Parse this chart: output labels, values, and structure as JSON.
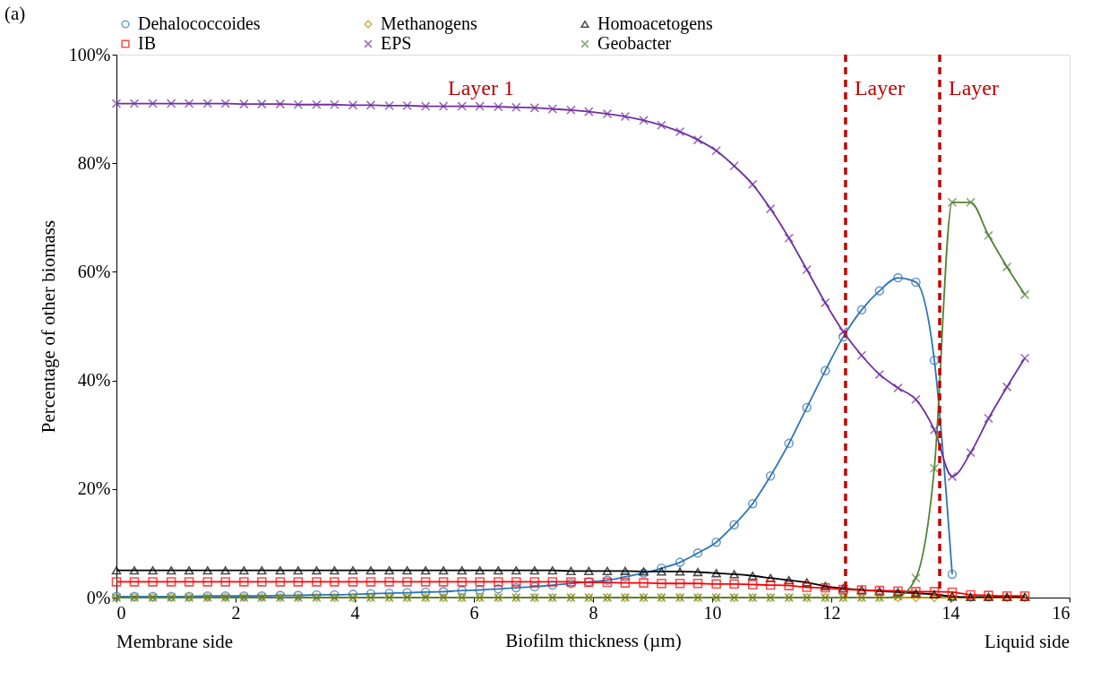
{
  "chart_data": {
    "type": "line",
    "xlabel": "Biofilm thickness (µm)",
    "ylabel": "Percentage of other biomass",
    "x": [
      0,
      0.3,
      0.61,
      0.92,
      1.22,
      1.53,
      1.83,
      2.14,
      2.44,
      2.75,
      3.05,
      3.36,
      3.66,
      3.97,
      4.27,
      4.58,
      4.88,
      5.19,
      5.49,
      5.8,
      6.1,
      6.41,
      6.71,
      7.02,
      7.32,
      7.63,
      7.93,
      8.24,
      8.54,
      8.85,
      9.15,
      9.46,
      9.76,
      10.07,
      10.37,
      10.68,
      10.98,
      11.29,
      11.59,
      11.9,
      12.2,
      12.51,
      12.81,
      13.12,
      13.42,
      13.73,
      14.03,
      14.34,
      14.64,
      14.95,
      15.25
    ],
    "series": [
      {
        "name": "Dehalococcoides",
        "color": "#2e75b6",
        "marker": "circle",
        "values": [
          0.2,
          0.2,
          0.2,
          0.2,
          0.2,
          0.3,
          0.3,
          0.3,
          0.3,
          0.4,
          0.4,
          0.5,
          0.5,
          0.6,
          0.7,
          0.8,
          0.9,
          1.0,
          1.1,
          1.3,
          1.4,
          1.6,
          1.8,
          2.0,
          2.3,
          2.6,
          2.9,
          3.2,
          3.8,
          4.5,
          5.4,
          6.5,
          8.2,
          10.2,
          13.4,
          17.3,
          22.4,
          28.4,
          35.0,
          41.8,
          48.0,
          53.0,
          56.5,
          58.9,
          58.1,
          43.7,
          4.3,
          null,
          null,
          null,
          null
        ]
      },
      {
        "name": "Methanogens",
        "color": "#bf9000",
        "marker": "diamond",
        "values": [
          0,
          0,
          0,
          0,
          0,
          0,
          0,
          0,
          0,
          0,
          0,
          0,
          0,
          0,
          0,
          0,
          0,
          0,
          0,
          0,
          0,
          0,
          0,
          0,
          0,
          0,
          0,
          0,
          0,
          0,
          0,
          0,
          0,
          0,
          0,
          0,
          0,
          0,
          0,
          0,
          0,
          0,
          0,
          0,
          0,
          0,
          0,
          0,
          0,
          0,
          0
        ]
      },
      {
        "name": "Homoacetogens",
        "color": "#000000",
        "marker": "triangle",
        "values": [
          5.0,
          5.0,
          5.0,
          5.0,
          5.0,
          5.0,
          5.0,
          5.0,
          5.0,
          5.0,
          5.0,
          5.0,
          5.0,
          5.0,
          5.0,
          5.0,
          5.0,
          5.0,
          5.0,
          5.0,
          5.0,
          5.0,
          5.0,
          5.0,
          5.0,
          4.9,
          4.9,
          4.9,
          4.9,
          4.8,
          4.8,
          4.8,
          4.7,
          4.5,
          4.3,
          4.0,
          3.6,
          3.2,
          2.8,
          2.1,
          1.7,
          1.4,
          1.2,
          1.0,
          0.8,
          0.6,
          0.2,
          0.1,
          0.1,
          0.1,
          0.1
        ]
      },
      {
        "name": "IB",
        "color": "#ff0000",
        "marker": "square",
        "values": [
          2.9,
          2.9,
          2.9,
          2.9,
          2.9,
          2.9,
          2.9,
          2.9,
          2.9,
          2.9,
          2.9,
          2.9,
          2.9,
          2.9,
          2.9,
          2.9,
          2.9,
          2.9,
          2.9,
          2.9,
          2.9,
          2.9,
          2.9,
          2.9,
          2.9,
          2.9,
          2.8,
          2.8,
          2.7,
          2.7,
          2.6,
          2.6,
          2.6,
          2.5,
          2.5,
          2.4,
          2.3,
          2.2,
          1.9,
          1.8,
          1.5,
          1.4,
          1.3,
          1.2,
          1.1,
          1.1,
          1.0,
          0.5,
          0.4,
          0.3,
          0.3
        ]
      },
      {
        "name": "EPS",
        "color": "#7030a0",
        "marker": "cross",
        "values": [
          91.0,
          91.0,
          91.0,
          91.0,
          91.0,
          91.0,
          91.0,
          90.9,
          90.9,
          90.9,
          90.8,
          90.8,
          90.8,
          90.7,
          90.7,
          90.6,
          90.6,
          90.5,
          90.5,
          90.5,
          90.5,
          90.4,
          90.3,
          90.2,
          90.0,
          89.8,
          89.5,
          89.1,
          88.6,
          87.9,
          87.0,
          85.8,
          84.3,
          82.3,
          79.5,
          76.1,
          71.6,
          66.2,
          60.4,
          54.3,
          49.0,
          44.6,
          41.1,
          38.6,
          36.5,
          30.9,
          22.3,
          26.7,
          33.0,
          38.8,
          44.1
        ]
      },
      {
        "name": "Geobacter",
        "color": "#548235",
        "marker": "cross",
        "values": [
          0,
          0,
          0,
          0,
          0,
          0,
          0,
          0,
          0,
          0,
          0,
          0,
          0,
          0,
          0,
          0,
          0,
          0,
          0,
          0,
          0,
          0,
          0,
          0,
          0,
          0,
          0,
          0,
          0,
          0,
          0,
          0,
          0,
          0,
          0,
          0,
          0,
          0,
          0,
          0,
          0,
          0,
          0,
          0.2,
          3.6,
          23.8,
          72.8,
          72.8,
          66.7,
          60.9,
          55.8
        ]
      }
    ],
    "xlim": [
      0,
      16
    ],
    "xticks": [
      0,
      2,
      4,
      6,
      8,
      10,
      12,
      14,
      16
    ],
    "ylim": [
      0,
      100
    ],
    "yticks": [
      {
        "value": 0,
        "label": "0%"
      },
      {
        "value": 20,
        "label": "20%"
      },
      {
        "value": 40,
        "label": "40%"
      },
      {
        "value": 60,
        "label": "60%"
      },
      {
        "value": 80,
        "label": "80%"
      },
      {
        "value": 100,
        "label": "100%"
      }
    ],
    "ref_lines": [
      {
        "axis": "x",
        "value": 12.24,
        "color": "#c00000",
        "line_style": "dashed"
      },
      {
        "axis": "x",
        "value": 13.82,
        "color": "#c00000",
        "line_style": "dashed"
      }
    ],
    "annotations": [
      "(a)",
      "Membrane side",
      "Liquid side",
      "Layer 1",
      "Layer",
      "Layer"
    ],
    "line_style": "solid",
    "grid": false,
    "legend": "top"
  }
}
